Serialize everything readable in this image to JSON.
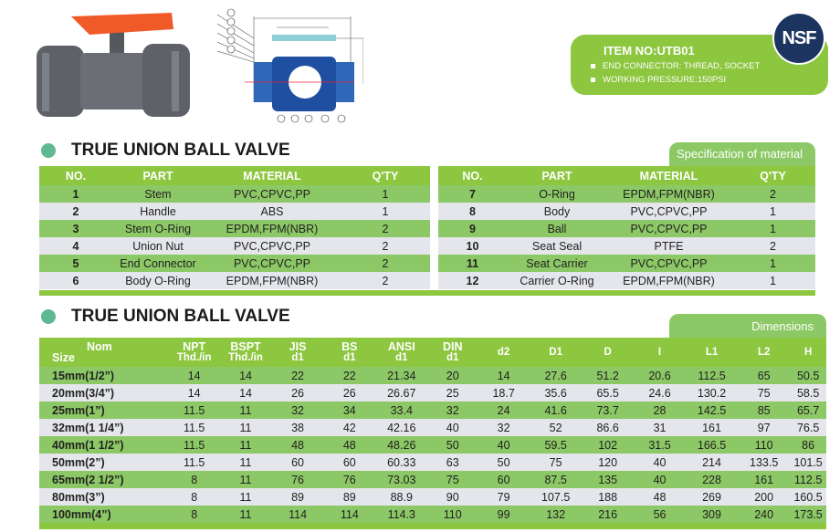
{
  "item": {
    "title": "ITEM  NO:UTB01",
    "lines": [
      "END CONNECTOR: THREAD, SOCKET",
      "WORKING  PRESSURE:150PSI"
    ],
    "badge": "NSF"
  },
  "colors": {
    "header_green": "#8dc63f",
    "row_green": "#8cc865",
    "row_gray": "#e4e6ec",
    "badge_navy": "#1c3560"
  },
  "parts": {
    "title": "TRUE UNION BALL VALVE",
    "tab": "Specification of material",
    "headers": [
      "NO.",
      "PART",
      "MATERIAL",
      "Q'TY"
    ],
    "left": [
      [
        "1",
        "Stem",
        "PVC,CPVC,PP",
        "1"
      ],
      [
        "2",
        "Handle",
        "ABS",
        "1"
      ],
      [
        "3",
        "Stem O-Ring",
        "EPDM,FPM(NBR)",
        "2"
      ],
      [
        "4",
        "Union Nut",
        "PVC,CPVC,PP",
        "2"
      ],
      [
        "5",
        "End Connector",
        "PVC,CPVC,PP",
        "2"
      ],
      [
        "6",
        "Body O-Ring",
        "EPDM,FPM(NBR)",
        "2"
      ]
    ],
    "right": [
      [
        "7",
        "O-Ring",
        "EPDM,FPM(NBR)",
        "2"
      ],
      [
        "8",
        "Body",
        "PVC,CPVC,PP",
        "1"
      ],
      [
        "9",
        "Ball",
        "PVC,CPVC,PP",
        "1"
      ],
      [
        "10",
        "Seat Seal",
        "PTFE",
        "2"
      ],
      [
        "11",
        "Seat Carrier",
        "PVC,CPVC,PP",
        "1"
      ],
      [
        "12",
        "Carrier O-Ring",
        "EPDM,FPM(NBR)",
        "1"
      ]
    ]
  },
  "dimensions": {
    "title": "TRUE UNION BALL VALVE",
    "tab": "Dimensions",
    "headers": [
      [
        "Nom",
        "Size"
      ],
      [
        "NPT",
        "Thd./in"
      ],
      [
        "BSPT",
        "Thd./in"
      ],
      [
        "JIS",
        "d1"
      ],
      [
        "BS",
        "d1"
      ],
      [
        "ANSI",
        "d1"
      ],
      [
        "DIN",
        "d1"
      ],
      [
        "",
        "d2"
      ],
      [
        "",
        "D1"
      ],
      [
        "",
        "D"
      ],
      [
        "",
        "I"
      ],
      [
        "",
        "L1"
      ],
      [
        "",
        "L2"
      ],
      [
        "",
        "H"
      ]
    ],
    "rows": [
      [
        "15mm(1/2”)",
        "14",
        "14",
        "22",
        "22",
        "21.34",
        "20",
        "14",
        "27.6",
        "51.2",
        "20.6",
        "112.5",
        "65",
        "50.5"
      ],
      [
        "20mm(3/4”)",
        "14",
        "14",
        "26",
        "26",
        "26.67",
        "25",
        "18.7",
        "35.6",
        "65.5",
        "24.6",
        "130.2",
        "75",
        "58.5"
      ],
      [
        "25mm(1”)",
        "11.5",
        "11",
        "32",
        "34",
        "33.4",
        "32",
        "24",
        "41.6",
        "73.7",
        "28",
        "142.5",
        "85",
        "65.7"
      ],
      [
        "32mm(1 1/4”)",
        "11.5",
        "11",
        "38",
        "42",
        "42.16",
        "40",
        "32",
        "52",
        "86.6",
        "31",
        "161",
        "97",
        "76.5"
      ],
      [
        "40mm(1 1/2”)",
        "11.5",
        "11",
        "48",
        "48",
        "48.26",
        "50",
        "40",
        "59.5",
        "102",
        "31.5",
        "166.5",
        "110",
        "86"
      ],
      [
        "50mm(2”)",
        "11.5",
        "11",
        "60",
        "60",
        "60.33",
        "63",
        "50",
        "75",
        "120",
        "40",
        "214",
        "133.5",
        "101.5"
      ],
      [
        "65mm(2 1/2”)",
        "8",
        "11",
        "76",
        "76",
        "73.03",
        "75",
        "60",
        "87.5",
        "135",
        "40",
        "228",
        "161",
        "112.5"
      ],
      [
        "80mm(3”)",
        "8",
        "11",
        "89",
        "89",
        "88.9",
        "90",
        "79",
        "107.5",
        "188",
        "48",
        "269",
        "200",
        "160.5"
      ],
      [
        "100mm(4”)",
        "8",
        "11",
        "114",
        "114",
        "114.3",
        "110",
        "99",
        "132",
        "216",
        "56",
        "309",
        "240",
        "173.5"
      ]
    ]
  }
}
